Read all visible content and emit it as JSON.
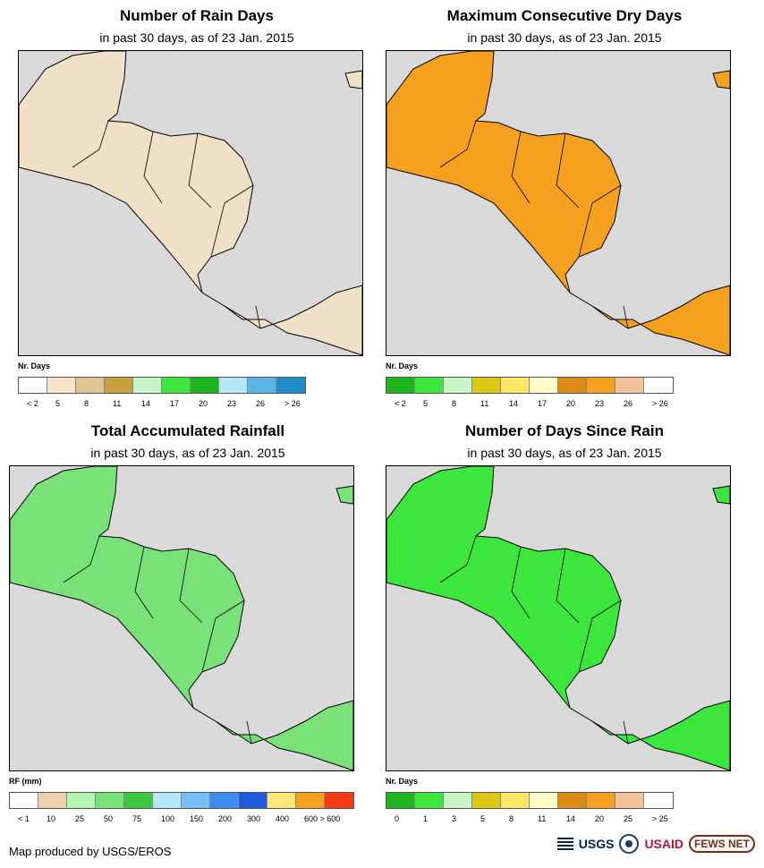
{
  "panels": [
    {
      "title": "Number of Rain Days",
      "subtitle": "in past 30 days, as of 23 Jan. 2015",
      "legend_title": "Nr. Days",
      "legend_colors": [
        "#ffffff",
        "#f5e3c8",
        "#e0c390",
        "#c9a040",
        "#c8f5c8",
        "#3de63d",
        "#1eb41e",
        "#b4e6f5",
        "#5ab4e6",
        "#1e8cc8"
      ],
      "legend_labels": [
        "< 2",
        "5",
        "8",
        "11",
        "14",
        "17",
        "20",
        "23",
        "26",
        "> 26"
      ],
      "map_fill": "#f0e0c8"
    },
    {
      "title": "Maximum Consecutive Dry Days",
      "subtitle": "in past 30 days, as of 23 Jan. 2015",
      "legend_title": "Nr. Days",
      "legend_colors": [
        "#1eb41e",
        "#3de63d",
        "#c8f5c8",
        "#dcc814",
        "#ffe664",
        "#ffffc8",
        "#dc8c14",
        "#f5a01e",
        "#f5c39b",
        "#ffffff"
      ],
      "legend_labels": [
        "< 2",
        "5",
        "8",
        "11",
        "14",
        "17",
        "20",
        "23",
        "26",
        "> 26"
      ],
      "map_fill": "#f5a01e"
    },
    {
      "title": "Total Accumulated Rainfall",
      "subtitle": "in past 30 days, as of 23 Jan. 2015",
      "legend_title": "RF (mm)",
      "legend_colors": [
        "#ffffff",
        "#ebd2aa",
        "#b4f5b4",
        "#78e178",
        "#3cc83c",
        "#b4e6f5",
        "#78bef5",
        "#3c8cf0",
        "#1e5adc",
        "#ffe678",
        "#f5a01e",
        "#f53c14"
      ],
      "legend_labels": [
        "< 1",
        "10",
        "25",
        "50",
        "75",
        "100",
        "150",
        "200",
        "300",
        "400",
        "600 > 600"
      ],
      "map_fill": "#78e178"
    },
    {
      "title": "Number of Days Since Rain",
      "subtitle": "in past 30 days, as of 23 Jan. 2015",
      "legend_title": "Nr. Days",
      "legend_colors": [
        "#1eb41e",
        "#3de63d",
        "#c8f5c8",
        "#dcc814",
        "#ffe664",
        "#ffffc8",
        "#dc8c14",
        "#f5a01e",
        "#f5c39b",
        "#ffffff"
      ],
      "legend_labels": [
        "0",
        "1",
        "3",
        "5",
        "8",
        "11",
        "14",
        "20",
        "25",
        "> 25"
      ],
      "map_fill": "#3de63d"
    }
  ],
  "ocean_color": "#d9d9d9",
  "footer": {
    "credit": "Map produced by USGS/EROS",
    "logos": {
      "usgs": "USGS",
      "usaid": "USAID",
      "fews": "FEWS NET"
    }
  }
}
